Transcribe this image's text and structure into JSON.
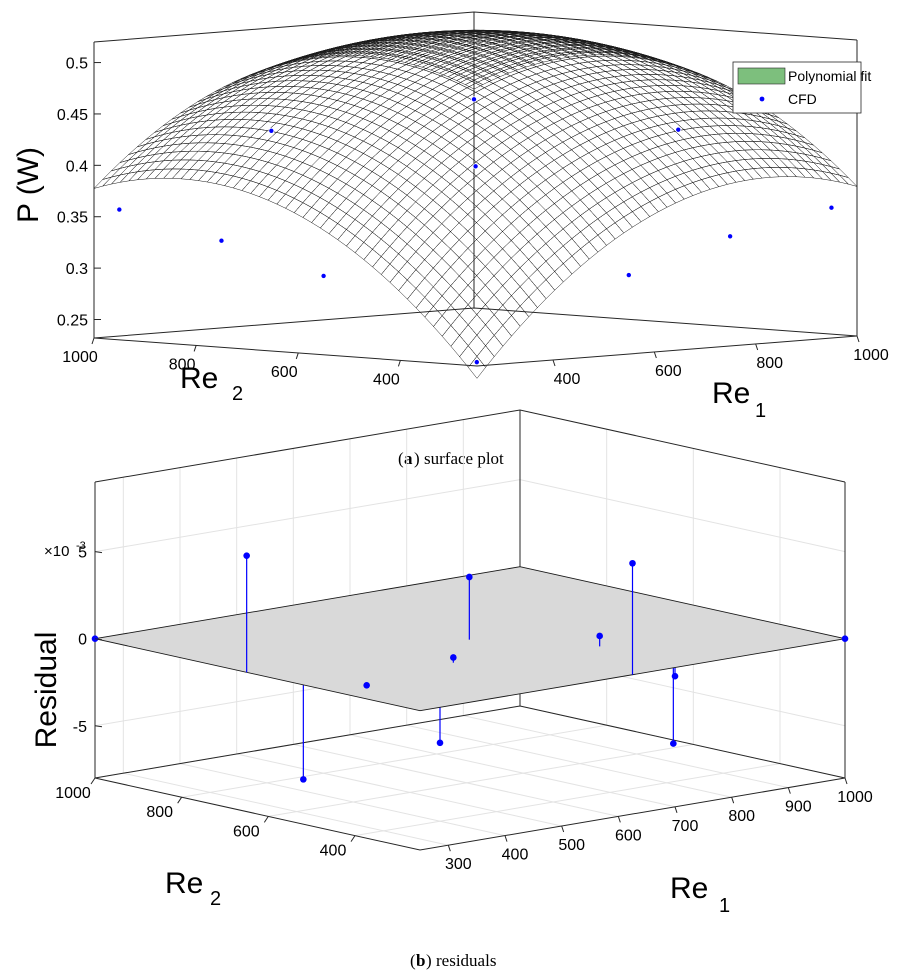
{
  "chart_data": [
    {
      "type": "surface",
      "id": "surface-plot",
      "caption_label": "a",
      "caption_text": "surface plot",
      "xlabel": "Re",
      "xlabel_sub": "1",
      "ylabel": "Re",
      "ylabel_sub": "2",
      "zlabel": "P (W)",
      "x_ticks": [
        "400",
        "600",
        "800",
        "1000"
      ],
      "y_ticks": [
        "400",
        "600",
        "800",
        "1000"
      ],
      "z_ticks": [
        "0.25",
        "0.3",
        "0.35",
        "0.4",
        "0.45",
        "0.5"
      ],
      "xlim": [
        250,
        1000
      ],
      "ylim": [
        250,
        1000
      ],
      "zlim": [
        0.232,
        0.52
      ],
      "surface_peak": [
        750,
        750,
        0.52
      ],
      "legend": [
        {
          "label": "Polynomial fit",
          "marker": "patch",
          "color": "#7dbf7d"
        },
        {
          "label": "CFD",
          "marker": "dot",
          "color": "#0000ff"
        }
      ],
      "colormap": [
        "#352a87",
        "#0f5cdd",
        "#1481d6",
        "#06a4ca",
        "#2eb7a4",
        "#87bf77",
        "#d1bb59",
        "#fec832",
        "#f9fb0e"
      ],
      "cfd_points": [
        {
          "re1": 300,
          "re2": 300,
          "p": 0.232
        },
        {
          "re1": 600,
          "re2": 300,
          "p": 0.305
        },
        {
          "re1": 1000,
          "re2": 300,
          "p": 0.355
        },
        {
          "re1": 300,
          "re2": 600,
          "p": 0.305
        },
        {
          "re1": 300,
          "re2": 1000,
          "p": 0.355
        },
        {
          "re1": 600,
          "re2": 600,
          "p": 0.4
        },
        {
          "re1": 1000,
          "re2": 600,
          "p": 0.42
        },
        {
          "re1": 600,
          "re2": 1000,
          "p": 0.42
        },
        {
          "re1": 1000,
          "re2": 1000,
          "p": 0.435
        },
        {
          "re1": 800,
          "re2": 300,
          "p": 0.335
        },
        {
          "re1": 300,
          "re2": 800,
          "p": 0.332
        }
      ]
    },
    {
      "type": "stem3",
      "id": "residual-plot",
      "caption_label": "b",
      "caption_text": "residuals",
      "xlabel": "Re",
      "xlabel_sub": "1",
      "ylabel": "Re",
      "ylabel_sub": "2",
      "zlabel": "Residual",
      "z_exponent_text": "×10",
      "z_exponent_power": "-3",
      "x_ticks": [
        "300",
        "400",
        "500",
        "600",
        "700",
        "800",
        "900",
        "1000"
      ],
      "y_ticks": [
        "400",
        "600",
        "800",
        "1000"
      ],
      "z_ticks": [
        "-5",
        "0",
        "5"
      ],
      "xlim": [
        250,
        1000
      ],
      "ylim": [
        250,
        1000
      ],
      "zlim": [
        -8,
        9
      ],
      "plane_color": "#d9d9d9",
      "residuals": [
        {
          "re1": 250,
          "re2": 1000,
          "r": 0
        },
        {
          "re1": 1000,
          "re2": 250,
          "r": 0
        },
        {
          "re1": 250,
          "re2": 650,
          "r": 6.7
        },
        {
          "re1": 625,
          "re2": 250,
          "r": 6.4
        },
        {
          "re1": 350,
          "re2": 650,
          "r": -6.7
        },
        {
          "re1": 620,
          "re2": 620,
          "r": 3.6
        },
        {
          "re1": 400,
          "re2": 400,
          "r": -3.5
        },
        {
          "re1": 500,
          "re2": 500,
          "r": 0.3
        },
        {
          "re1": 720,
          "re2": 450,
          "r": 0.6
        },
        {
          "re1": 850,
          "re2": 450,
          "r": -6.3
        },
        {
          "re1": 500,
          "re2": 700,
          "r": -2.4
        },
        {
          "re1": 700,
          "re2": 250,
          "r": -0.5
        }
      ]
    }
  ]
}
